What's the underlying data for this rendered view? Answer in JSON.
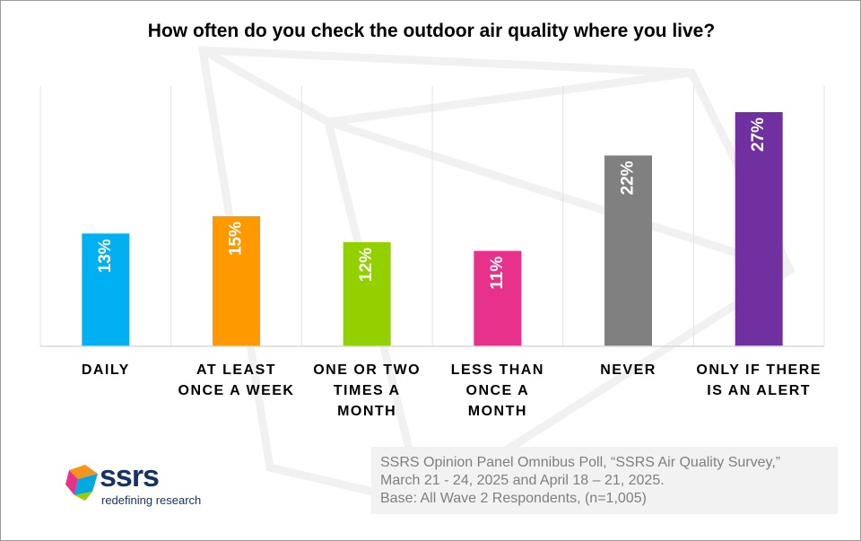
{
  "chart_data": {
    "type": "bar",
    "title": "How often do you check the outdoor air quality where you live?",
    "categories": [
      [
        "DAILY"
      ],
      [
        "AT LEAST",
        "ONCE A WEEK"
      ],
      [
        "ONE OR TWO",
        "TIMES A",
        "MONTH"
      ],
      [
        "LESS THAN",
        "ONCE A",
        "MONTH"
      ],
      [
        "NEVER"
      ],
      [
        "ONLY IF THERE",
        "IS AN ALERT"
      ]
    ],
    "values": [
      13,
      15,
      12,
      11,
      22,
      27
    ],
    "value_labels": [
      "13%",
      "15%",
      "12%",
      "11%",
      "22%",
      "27%"
    ],
    "colors": [
      "#00b0f0",
      "#ff9900",
      "#92d000",
      "#e8318a",
      "#808080",
      "#7030a0"
    ],
    "ylim": [
      0,
      30
    ],
    "grid": "vertical category separators",
    "legend": "none"
  },
  "source": {
    "lines": [
      "SSRS Opinion Panel Omnibus Poll, “SSRS Air Quality Survey,”",
      "March 21 - 24, 2025 and April 18 – 21, 2025.",
      "Base: All Wave 2 Respondents, (n=1,005)"
    ]
  },
  "logo": {
    "name": "ssrs",
    "tagline": "redefining research"
  }
}
